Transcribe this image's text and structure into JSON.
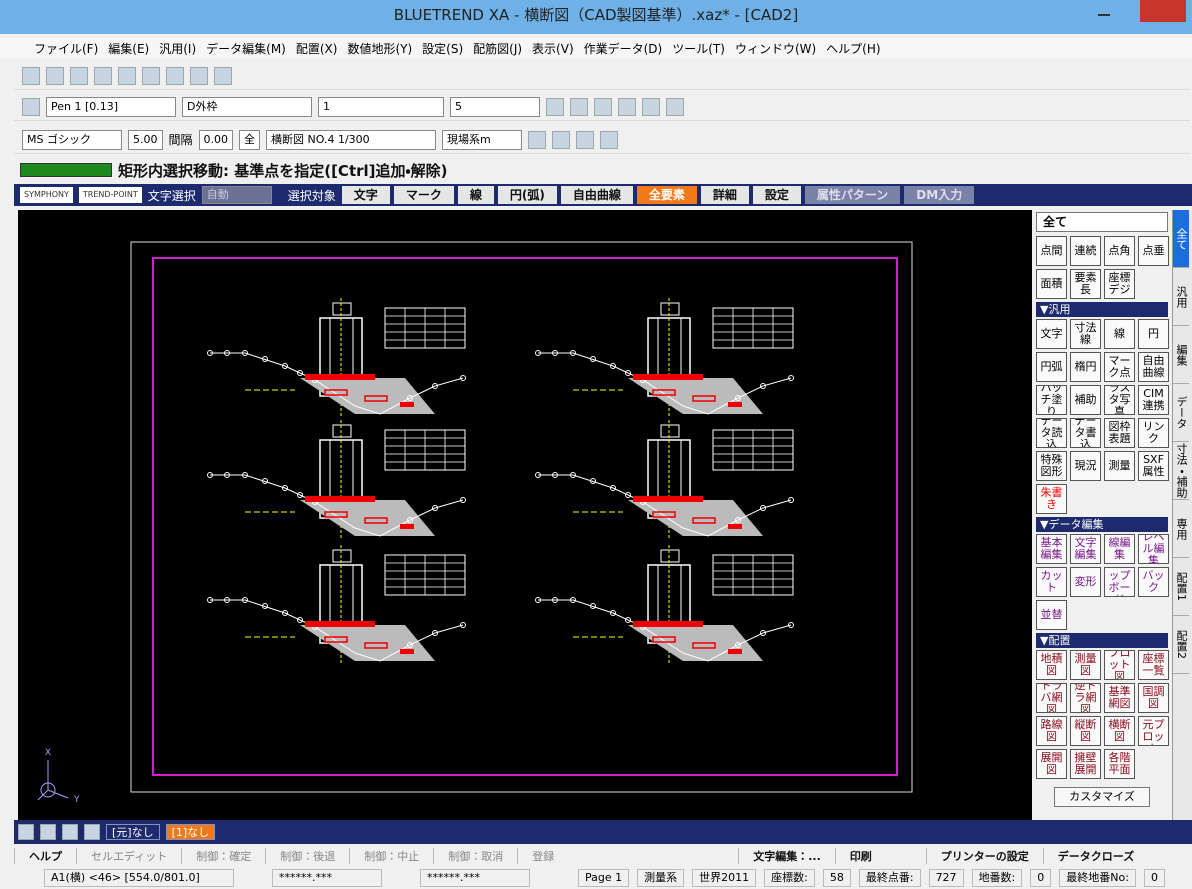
{
  "window": {
    "title": "BLUETREND XA - 横断図（CAD製図基準）.xaz* - [CAD2]"
  },
  "menu": [
    "ファイル(F)",
    "編集(E)",
    "汎用(I)",
    "データ編集(M)",
    "配置(X)",
    "数値地形(Y)",
    "設定(S)",
    "配筋図(J)",
    "表示(V)",
    "作業データ(D)",
    "ツール(T)",
    "ウィンドウ(W)",
    "ヘルプ(H)"
  ],
  "toolbar_pen": {
    "pen": "Pen 1 [0.13]",
    "layer": "D外枠",
    "line_no": "1",
    "size": "5"
  },
  "toolbar_font": {
    "font": "MS ゴシック",
    "size": "5.00",
    "spacing_label": "間隔",
    "spacing": "0.00",
    "all": "全",
    "sheet": "横断図 NO.4 1/300",
    "coord": "現場系m"
  },
  "prompt": "矩形内選択移動: 基準点を指定([Ctrl]追加・解除)",
  "select_bar": {
    "mode_label": "文字選択",
    "mode": "自動",
    "target_label": "選択対象",
    "targets": [
      "文字",
      "マーク",
      "線",
      "円(弧)",
      "自由曲線",
      "全要素",
      "詳細",
      "設定",
      "属性パターン",
      "DM入力"
    ]
  },
  "canvas": {
    "axis_x": "X",
    "axis_y": "Y"
  },
  "panel": {
    "header": "全て",
    "sections": [
      {
        "buttons": [
          "点間",
          "連続",
          "点角",
          "点垂",
          "面積",
          "要素長",
          "座標デジ"
        ]
      },
      {
        "title": "▼汎用",
        "buttons": [
          "文字",
          "寸法線",
          "線",
          "円",
          "円弧",
          "楕円",
          "マーク点",
          "自由曲線",
          "ハッチ塗り",
          "補助",
          "ラスタ写真",
          "CIM連携",
          "データ読込",
          "データ書込",
          "図枠表題",
          "リンク",
          "特殊図形",
          "現況",
          "測量",
          "SXF属性",
          "朱書き"
        ]
      },
      {
        "title": "▼データ編集",
        "buttons": [
          "基本編集",
          "文字編集",
          "線編集",
          "レベル編集",
          "カット",
          "変形",
          "クリップボード",
          "バック",
          "並替"
        ]
      },
      {
        "title": "▼配置",
        "buttons": [
          "地積図",
          "測量図",
          "プロット図",
          "座標一覧",
          "トラバ網図",
          "逆トラ網図",
          "基準網図",
          "国調図",
          "路線図",
          "縦断図",
          "横断図",
          "3次元プロット",
          "展開図",
          "擁壁展開",
          "各階平面"
        ]
      }
    ],
    "customize": "カスタマイズ"
  },
  "side_tabs": [
    "全て",
    "汎用",
    "編集",
    "データ",
    "寸法・補助",
    "専用",
    "配置1",
    "配置2"
  ],
  "layer_tabs": [
    "[元]なし",
    "[1]なし"
  ],
  "help_bar": [
    "ヘルプ",
    "セルエディット",
    "制御：確定",
    "制御：後退",
    "制御：中止",
    "制御：取消",
    "登録",
    "文字編集：...",
    "印刷",
    "プリンターの設定",
    "データクローズ"
  ],
  "status_bar": [
    "A1(横) <46> [554.0/801.0]",
    "******.***",
    "******.***",
    "Page 1",
    "測量系",
    "世界2011",
    "座標数:",
    "58",
    "最終点番:",
    "727",
    "地番数:",
    "0",
    "最終地番No:",
    "0"
  ]
}
